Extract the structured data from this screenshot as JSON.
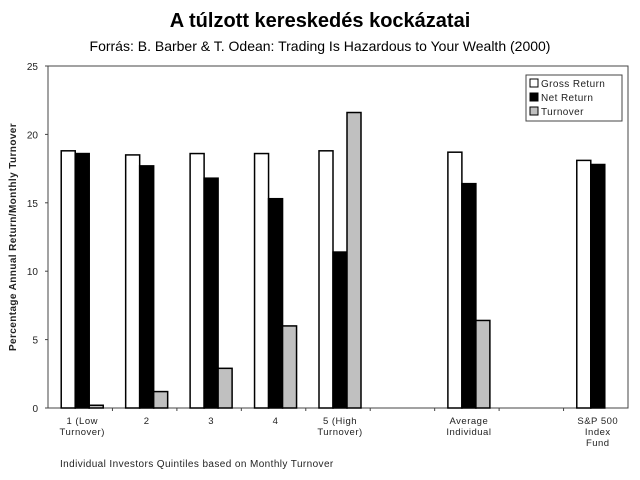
{
  "title": "A túlzott kereskedés kockázatai",
  "subtitle": "Forrás: B. Barber & T. Odean: Trading Is Hazardous to Your Wealth (2000)",
  "chart_data": {
    "type": "bar",
    "title": "",
    "xlabel": "Individual Investors Quintiles based on Monthly Turnover",
    "ylabel": "Percentage Annual Return/Monthly Turnover",
    "ylim": [
      0,
      25
    ],
    "yticks": [
      0,
      5,
      10,
      15,
      20,
      25
    ],
    "grid": false,
    "legend_position": "top-right",
    "categories": [
      [
        "1 (Low",
        "Turnover)"
      ],
      [
        "2"
      ],
      [
        "3"
      ],
      [
        "4"
      ],
      [
        "5 (High",
        "Turnover)"
      ],
      [],
      [
        "Average",
        "Individual"
      ],
      [],
      [
        "S&P 500",
        "Index",
        "Fund"
      ]
    ],
    "series": [
      {
        "name": "Gross Return",
        "color": "#ffffff",
        "values": [
          18.8,
          18.5,
          18.6,
          18.6,
          18.8,
          null,
          18.7,
          null,
          18.1
        ]
      },
      {
        "name": "Net Return",
        "color": "#000000",
        "values": [
          18.6,
          17.7,
          16.8,
          15.3,
          11.4,
          null,
          16.4,
          null,
          17.8
        ]
      },
      {
        "name": "Turnover",
        "color": "#c0c0c0",
        "values": [
          0.2,
          1.2,
          2.9,
          6.0,
          21.6,
          null,
          6.4,
          null,
          null
        ]
      }
    ]
  }
}
